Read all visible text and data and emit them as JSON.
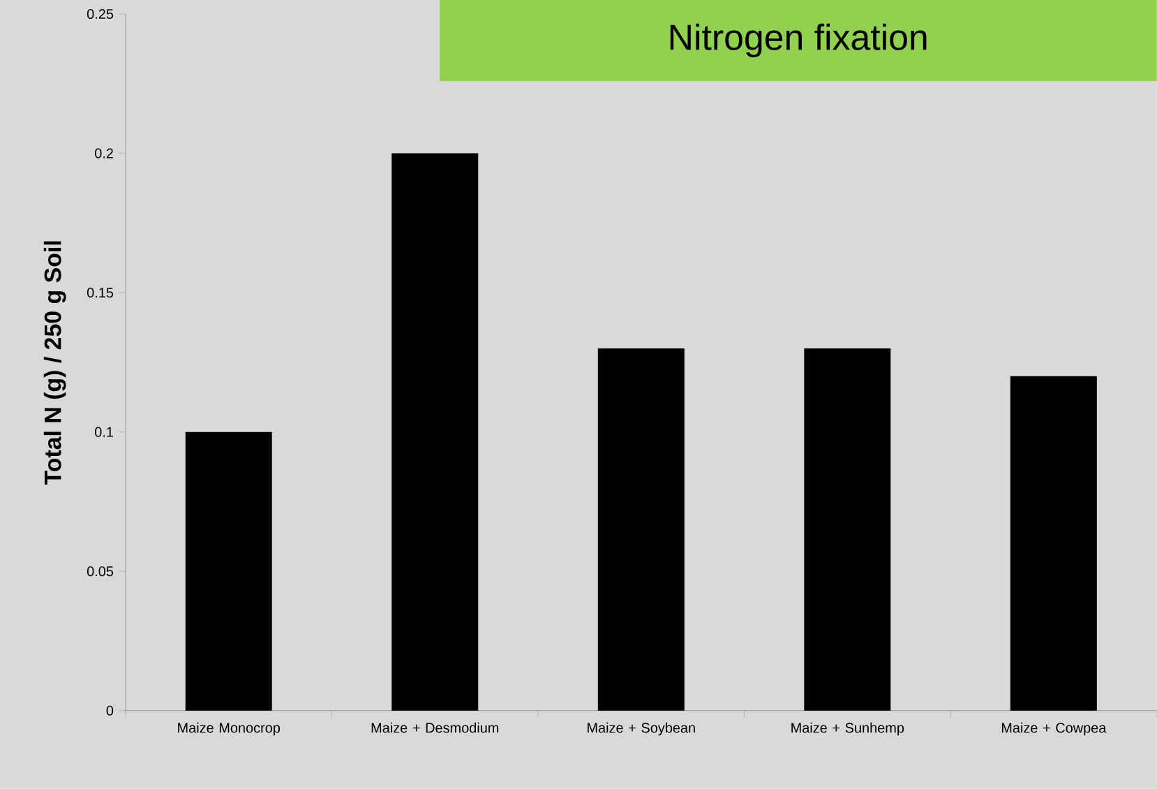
{
  "chart_data": {
    "type": "bar",
    "title": "Nitrogen fixation",
    "ylabel": "Total N (g) / 250 g Soil",
    "categories": [
      "Maize Monocrop",
      "Maize + Desmodium",
      "Maize + Soybean",
      "Maize + Sunhemp",
      "Maize + Cowpea"
    ],
    "values": [
      0.1,
      0.2,
      0.13,
      0.13,
      0.12
    ],
    "color": "#000000",
    "ylim": [
      0,
      0.25
    ],
    "yticks": [
      0,
      0.05,
      0.1,
      0.15,
      0.2,
      0.25
    ]
  }
}
